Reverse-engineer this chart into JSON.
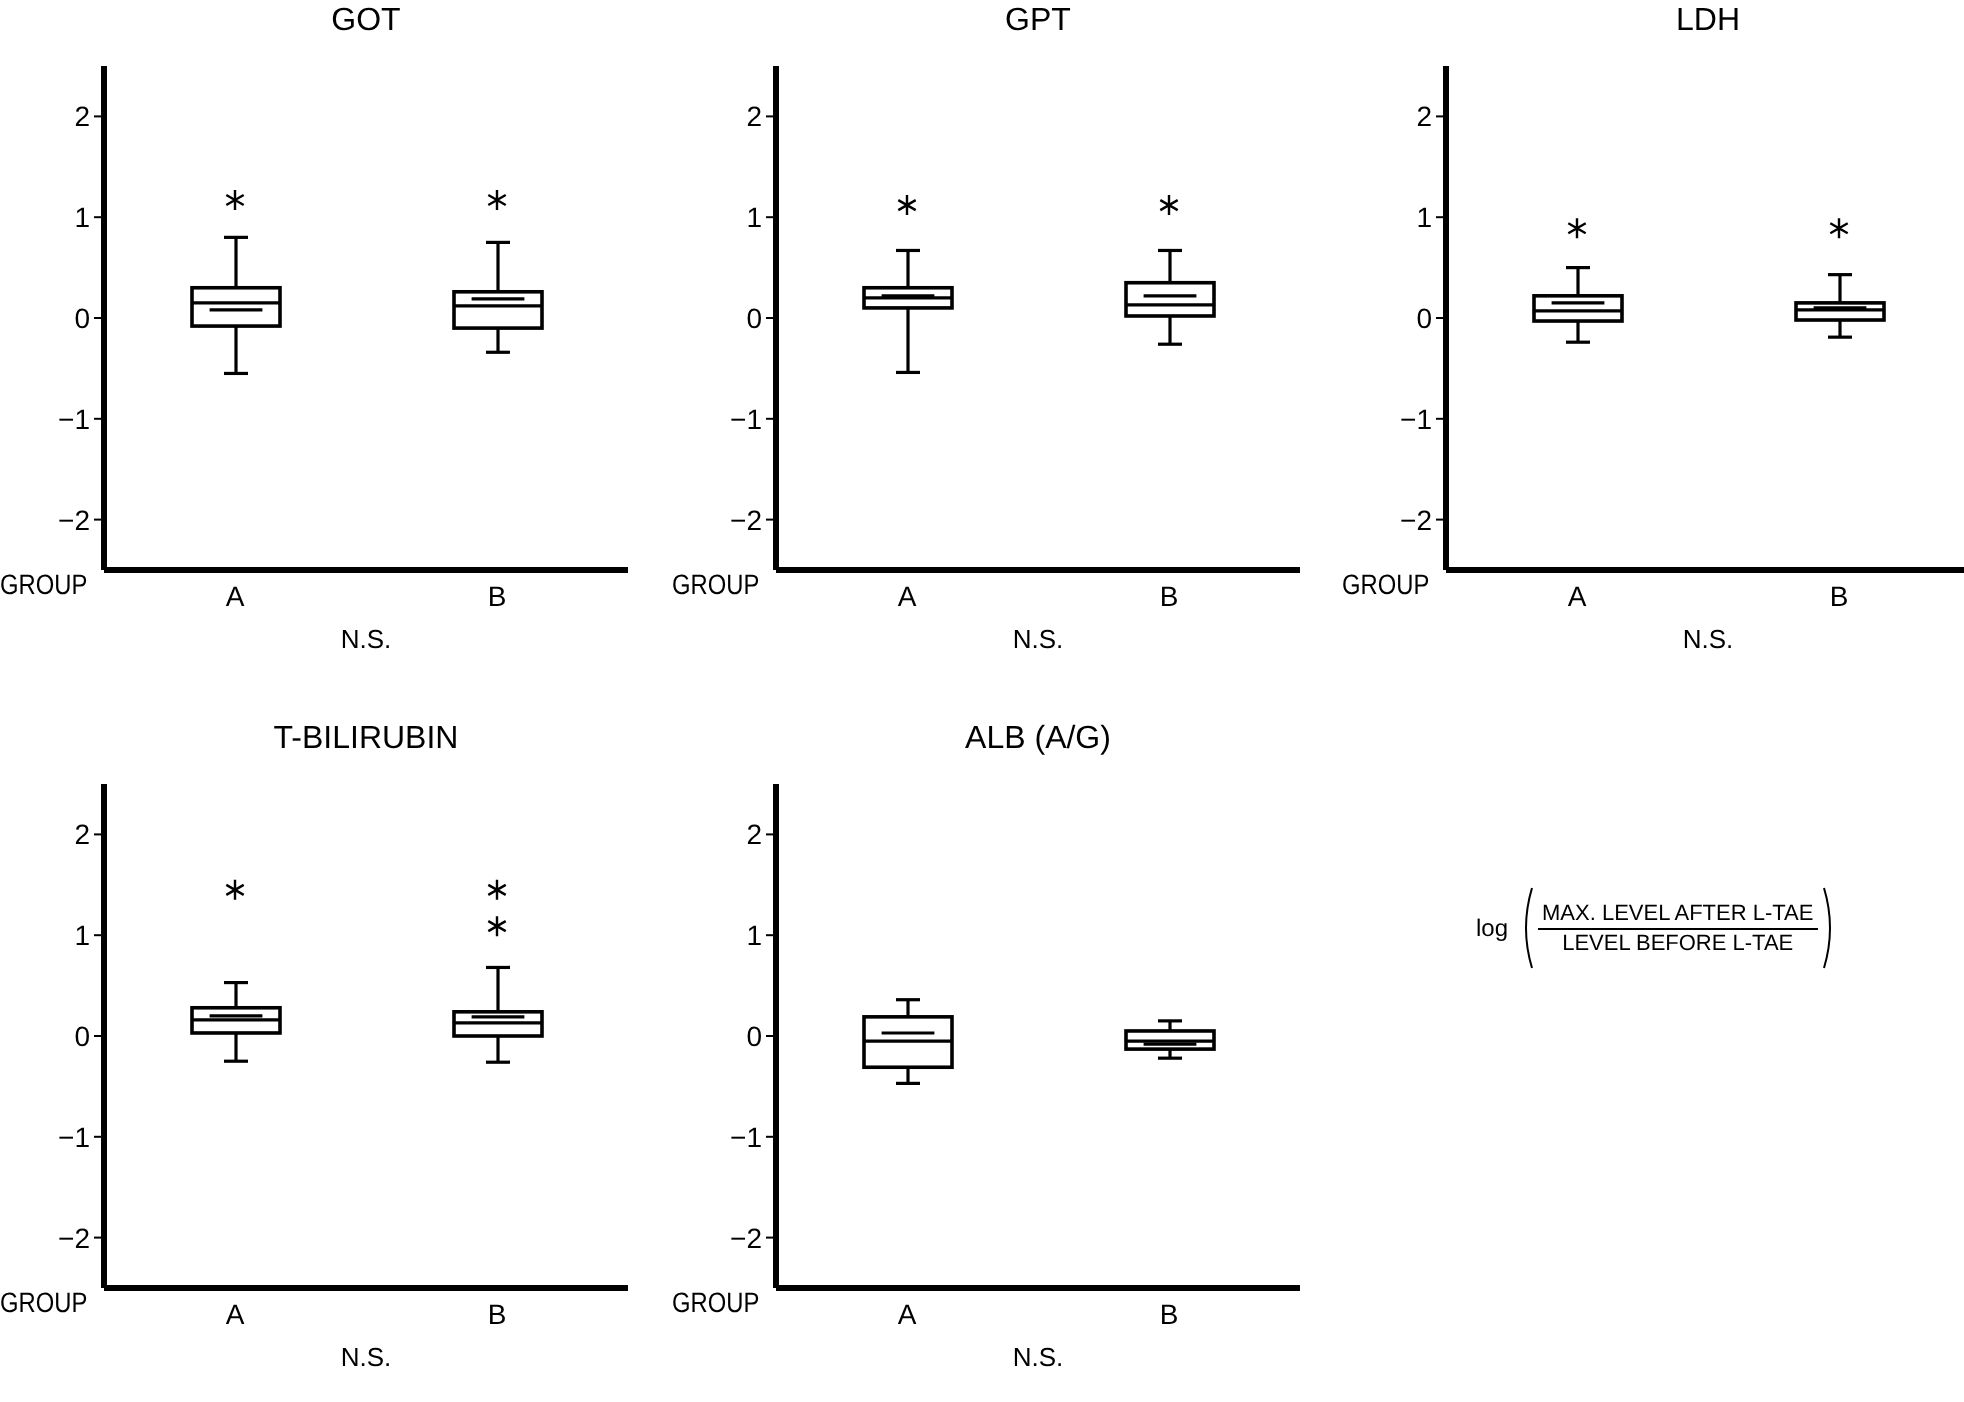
{
  "chart_data": [
    {
      "type": "box",
      "title": "GOT",
      "xlabel": "GROUP",
      "categories": [
        "A",
        "B"
      ],
      "color": "#000000",
      "ylim": [
        -2.5,
        2.5
      ],
      "yticks": [
        -2,
        -1,
        0,
        1,
        2
      ],
      "annotations": [
        "N.S."
      ],
      "boxes": [
        {
          "low": -0.55,
          "q1": -0.08,
          "median": 0.15,
          "q3": 0.3,
          "high": 0.8,
          "mean": 0.08,
          "outliers": [
            1.17
          ]
        },
        {
          "low": -0.34,
          "q1": -0.1,
          "median": 0.12,
          "q3": 0.26,
          "high": 0.75,
          "mean": 0.19,
          "outliers": [
            1.17
          ]
        }
      ]
    },
    {
      "type": "box",
      "title": "GPT",
      "xlabel": "GROUP",
      "categories": [
        "A",
        "B"
      ],
      "color": "#000000",
      "ylim": [
        -2.5,
        2.5
      ],
      "yticks": [
        -2,
        -1,
        0,
        1,
        2
      ],
      "annotations": [
        "N.S."
      ],
      "boxes": [
        {
          "low": -0.54,
          "q1": 0.1,
          "median": 0.2,
          "q3": 0.3,
          "high": 0.67,
          "mean": 0.22,
          "outliers": [
            1.12
          ]
        },
        {
          "low": -0.26,
          "q1": 0.02,
          "median": 0.13,
          "q3": 0.35,
          "high": 0.67,
          "mean": 0.22,
          "outliers": [
            1.12
          ]
        }
      ]
    },
    {
      "type": "box",
      "title": "LDH",
      "xlabel": "GROUP",
      "categories": [
        "A",
        "B"
      ],
      "color": "#000000",
      "ylim": [
        -2.5,
        2.5
      ],
      "yticks": [
        -2,
        -1,
        0,
        1,
        2
      ],
      "annotations": [
        "N.S."
      ],
      "boxes": [
        {
          "low": -0.24,
          "q1": -0.03,
          "median": 0.07,
          "q3": 0.22,
          "high": 0.5,
          "mean": 0.15,
          "outliers": [
            0.89
          ]
        },
        {
          "low": -0.19,
          "q1": -0.02,
          "median": 0.08,
          "q3": 0.15,
          "high": 0.43,
          "mean": 0.1,
          "outliers": [
            0.89
          ]
        }
      ]
    },
    {
      "type": "box",
      "title": "T-BILIRUBIN",
      "xlabel": "GROUP",
      "categories": [
        "A",
        "B"
      ],
      "color": "#000000",
      "ylim": [
        -2.5,
        2.5
      ],
      "yticks": [
        -2,
        -1,
        0,
        1,
        2
      ],
      "annotations": [
        "N.S."
      ],
      "boxes": [
        {
          "low": -0.25,
          "q1": 0.03,
          "median": 0.16,
          "q3": 0.28,
          "high": 0.53,
          "mean": 0.2,
          "outliers": [
            1.45
          ]
        },
        {
          "low": -0.26,
          "q1": 0.0,
          "median": 0.13,
          "q3": 0.24,
          "high": 0.68,
          "mean": 0.19,
          "outliers": [
            1.09,
            1.45
          ]
        }
      ]
    },
    {
      "type": "box",
      "title": "ALB (A/G)",
      "xlabel": "GROUP",
      "categories": [
        "A",
        "B"
      ],
      "color": "#000000",
      "ylim": [
        -2.5,
        2.5
      ],
      "yticks": [
        -2,
        -1,
        0,
        1,
        2
      ],
      "annotations": [
        "N.S."
      ],
      "boxes": [
        {
          "low": -0.47,
          "q1": -0.31,
          "median": -0.05,
          "q3": 0.19,
          "high": 0.36,
          "mean": 0.03
        },
        {
          "low": -0.22,
          "q1": -0.13,
          "median": -0.05,
          "q3": 0.05,
          "high": 0.15,
          "mean": -0.08
        }
      ]
    },
    {
      "type": "other",
      "annotations": [
        "log",
        "MAX. LEVEL AFTER L-TAE",
        "LEVEL BEFORE L-TAE"
      ]
    }
  ]
}
